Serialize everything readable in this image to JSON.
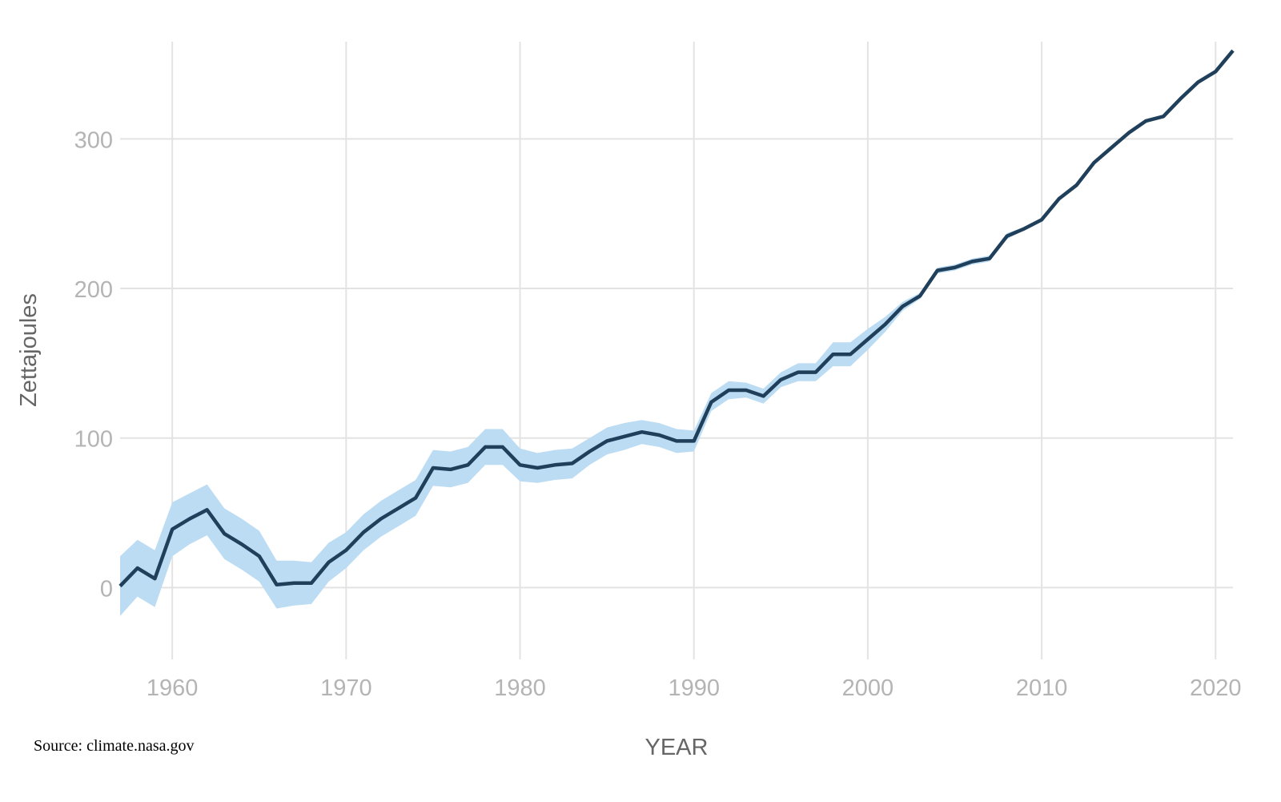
{
  "chart_data": {
    "type": "area",
    "title": "",
    "xlabel": "YEAR",
    "ylabel": "Zettajoules",
    "source": "Source: climate.nasa.gov",
    "xlim": [
      1957,
      2021
    ],
    "ylim": [
      -48,
      365
    ],
    "xticks": [
      1960,
      1970,
      1980,
      1990,
      2000,
      2010,
      2020
    ],
    "yticks": [
      0,
      100,
      200,
      300
    ],
    "grid": true,
    "legend": "none",
    "colors": {
      "line": "#1f3f5b",
      "band": "#bcdcf3",
      "grid": "#e3e3e3"
    },
    "x": [
      1957,
      1958,
      1959,
      1960,
      1961,
      1962,
      1963,
      1964,
      1965,
      1966,
      1967,
      1968,
      1969,
      1970,
      1971,
      1972,
      1973,
      1974,
      1975,
      1976,
      1977,
      1978,
      1979,
      1980,
      1981,
      1982,
      1983,
      1984,
      1985,
      1986,
      1987,
      1988,
      1989,
      1990,
      1991,
      1992,
      1993,
      1994,
      1995,
      1996,
      1997,
      1998,
      1999,
      2000,
      2001,
      2002,
      2003,
      2004,
      2005,
      2006,
      2007,
      2008,
      2009,
      2010,
      2011,
      2012,
      2013,
      2014,
      2015,
      2016,
      2017,
      2018,
      2019,
      2020,
      2021
    ],
    "series": [
      {
        "values": [
          1,
          13,
          6,
          39,
          46,
          52,
          36,
          29,
          21,
          2,
          3,
          3,
          17,
          25,
          37,
          46,
          53,
          60,
          80,
          79,
          82,
          94,
          94,
          82,
          80,
          82,
          83,
          91,
          98,
          101,
          104,
          102,
          98,
          98,
          124,
          132,
          132,
          128,
          139,
          144,
          144,
          156,
          156,
          166,
          176,
          188,
          195,
          212,
          214,
          218,
          220,
          235,
          240,
          246,
          260,
          269,
          284,
          294,
          304,
          312,
          315,
          327,
          338,
          345,
          359
        ],
        "uncertainty": [
          20,
          19,
          19,
          18,
          17,
          17,
          17,
          17,
          17,
          16,
          15,
          14,
          13,
          12,
          12,
          12,
          12,
          12,
          12,
          12,
          12,
          12,
          12,
          11,
          10,
          10,
          10,
          9,
          9,
          9,
          8,
          8,
          8,
          7,
          6,
          6,
          5,
          5,
          5,
          6,
          6,
          8,
          8,
          7,
          5,
          3,
          2,
          2,
          2,
          2,
          2,
          2,
          1,
          1,
          1,
          1,
          1,
          1,
          1,
          1,
          1,
          1,
          1,
          1,
          1
        ]
      }
    ]
  }
}
